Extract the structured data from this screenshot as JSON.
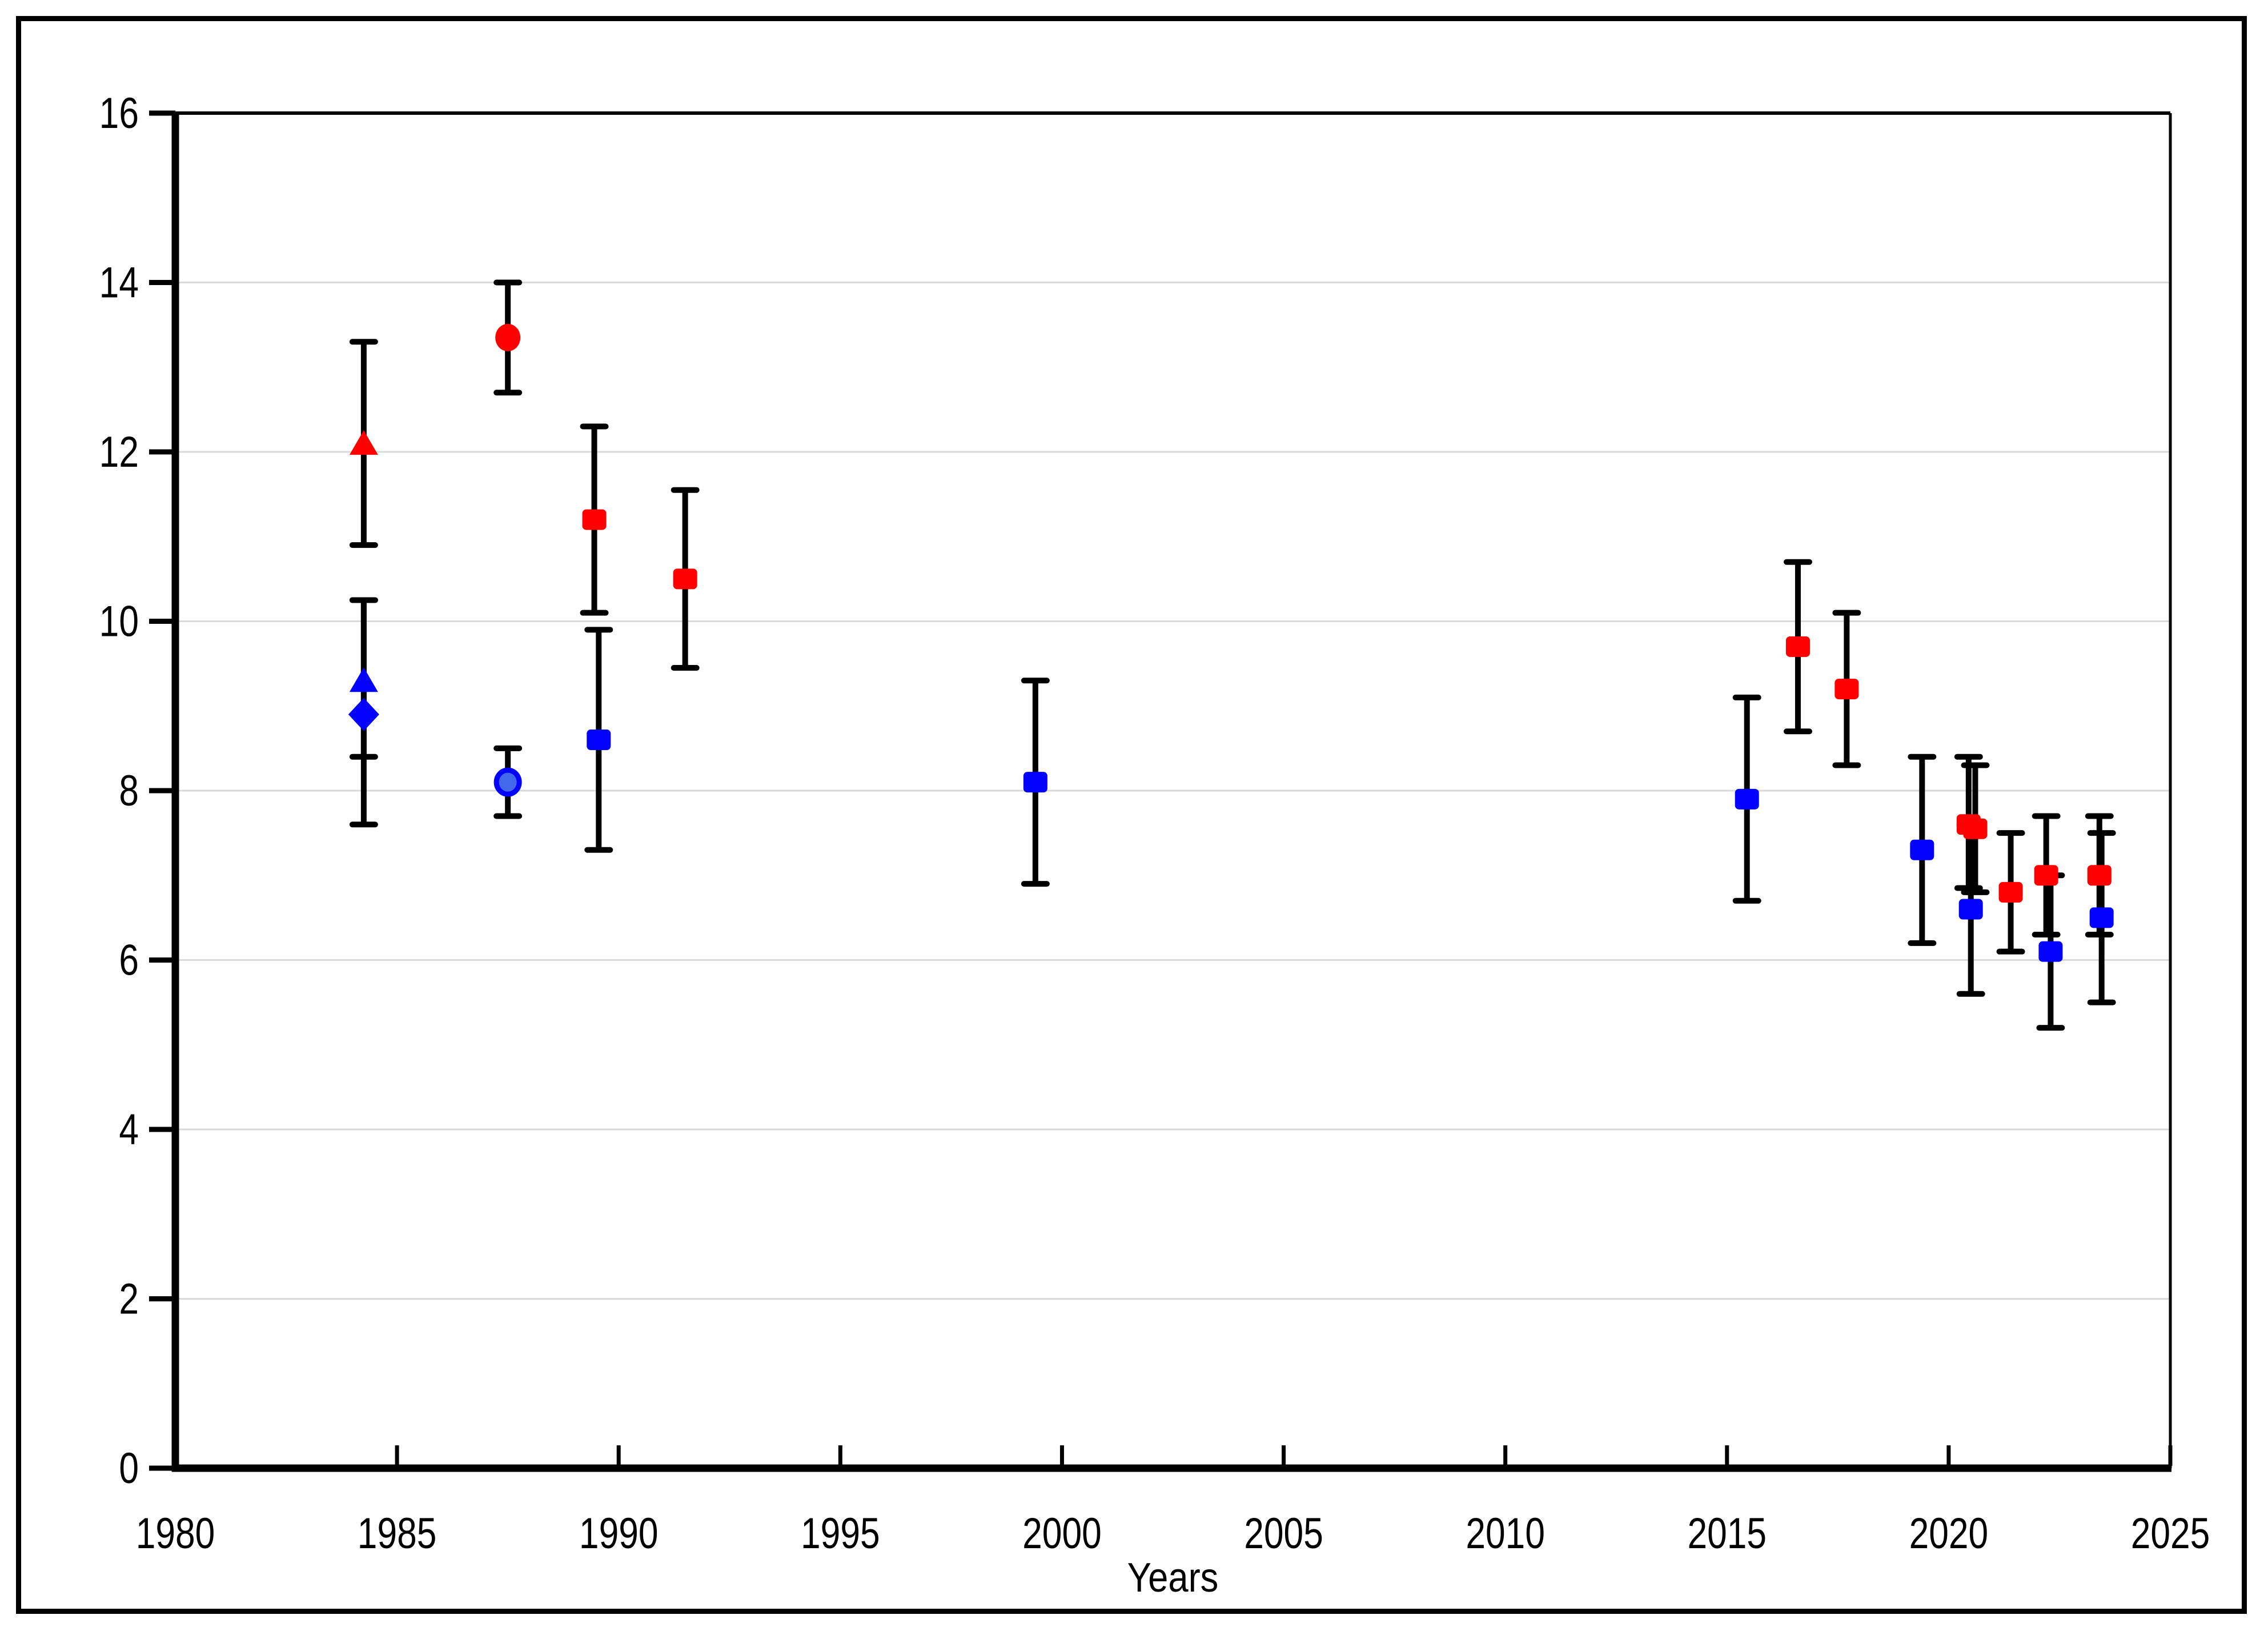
{
  "figure": {
    "background": "#ffffff",
    "border_color": "#000000"
  },
  "chart_data": {
    "type": "scatter",
    "title": "",
    "xlabel": "Years",
    "ylabel": "",
    "xlim": [
      1980,
      2025
    ],
    "ylim": [
      0,
      16
    ],
    "x_ticks": [
      1980,
      1985,
      1990,
      1995,
      2000,
      2005,
      2010,
      2015,
      2020,
      2025
    ],
    "x_tick_labels": [
      "1980",
      "1985",
      "1990",
      "1995",
      "2000",
      "2005",
      "2010",
      "2015",
      "2020",
      "2025"
    ],
    "y_ticks": [
      0,
      2,
      4,
      6,
      8,
      10,
      12,
      14,
      16
    ],
    "y_tick_labels": [
      "0",
      "2",
      "4",
      "6",
      "8",
      "10",
      "12",
      "14",
      "16"
    ],
    "grid": "horizontal",
    "legend": "none",
    "colors": {
      "red": "#fe0000",
      "blue": "#0202fe",
      "blue_circle_fill": "#4169e9",
      "gridline": "#d9d9d9",
      "error_bar": "#000000",
      "axis": "#000000"
    },
    "series": [
      {
        "name": "red-series",
        "color": "#fe0000",
        "points": [
          {
            "x": 1984.25,
            "y": 12.1,
            "lo": 10.9,
            "hi": 13.3,
            "marker": "triangle"
          },
          {
            "x": 1987.5,
            "y": 13.35,
            "lo": 12.7,
            "hi": 14.0,
            "marker": "circle"
          },
          {
            "x": 1989.45,
            "y": 11.2,
            "lo": 10.1,
            "hi": 12.3,
            "marker": "square"
          },
          {
            "x": 1991.5,
            "y": 10.5,
            "lo": 9.45,
            "hi": 11.55,
            "marker": "square"
          },
          {
            "x": 2016.6,
            "y": 9.7,
            "lo": 8.7,
            "hi": 10.7,
            "marker": "square"
          },
          {
            "x": 2017.7,
            "y": 9.2,
            "lo": 8.3,
            "hi": 10.1,
            "marker": "square"
          },
          {
            "x": 2020.45,
            "y": 7.6,
            "lo": 6.85,
            "hi": 8.4,
            "marker": "square"
          },
          {
            "x": 2020.6,
            "y": 7.55,
            "lo": 6.8,
            "hi": 8.3,
            "marker": "square"
          },
          {
            "x": 2021.4,
            "y": 6.8,
            "lo": 6.1,
            "hi": 7.5,
            "marker": "square"
          },
          {
            "x": 2022.2,
            "y": 7.0,
            "lo": 6.3,
            "hi": 7.7,
            "marker": "square"
          },
          {
            "x": 2023.4,
            "y": 7.0,
            "lo": 6.3,
            "hi": 7.7,
            "marker": "square"
          }
        ]
      },
      {
        "name": "blue-series",
        "color": "#0202fe",
        "points": [
          {
            "x": 1984.25,
            "y": 9.3,
            "lo": 8.4,
            "hi": 10.25,
            "marker": "triangle"
          },
          {
            "x": 1984.25,
            "y": 8.9,
            "lo": 7.6,
            "hi": 10.25,
            "marker": "diamond"
          },
          {
            "x": 1987.5,
            "y": 8.1,
            "lo": 7.7,
            "hi": 8.5,
            "marker": "circle-open"
          },
          {
            "x": 1989.55,
            "y": 8.6,
            "lo": 7.3,
            "hi": 9.9,
            "marker": "square"
          },
          {
            "x": 1999.4,
            "y": 8.1,
            "lo": 6.9,
            "hi": 9.3,
            "marker": "square"
          },
          {
            "x": 2015.45,
            "y": 7.9,
            "lo": 6.7,
            "hi": 9.1,
            "marker": "square"
          },
          {
            "x": 2019.4,
            "y": 7.3,
            "lo": 6.2,
            "hi": 8.4,
            "marker": "square"
          },
          {
            "x": 2020.5,
            "y": 6.6,
            "lo": 5.6,
            "hi": 7.6,
            "marker": "square"
          },
          {
            "x": 2022.3,
            "y": 6.1,
            "lo": 5.2,
            "hi": 7.0,
            "marker": "square"
          },
          {
            "x": 2023.45,
            "y": 6.5,
            "lo": 5.5,
            "hi": 7.5,
            "marker": "square"
          }
        ]
      }
    ]
  }
}
